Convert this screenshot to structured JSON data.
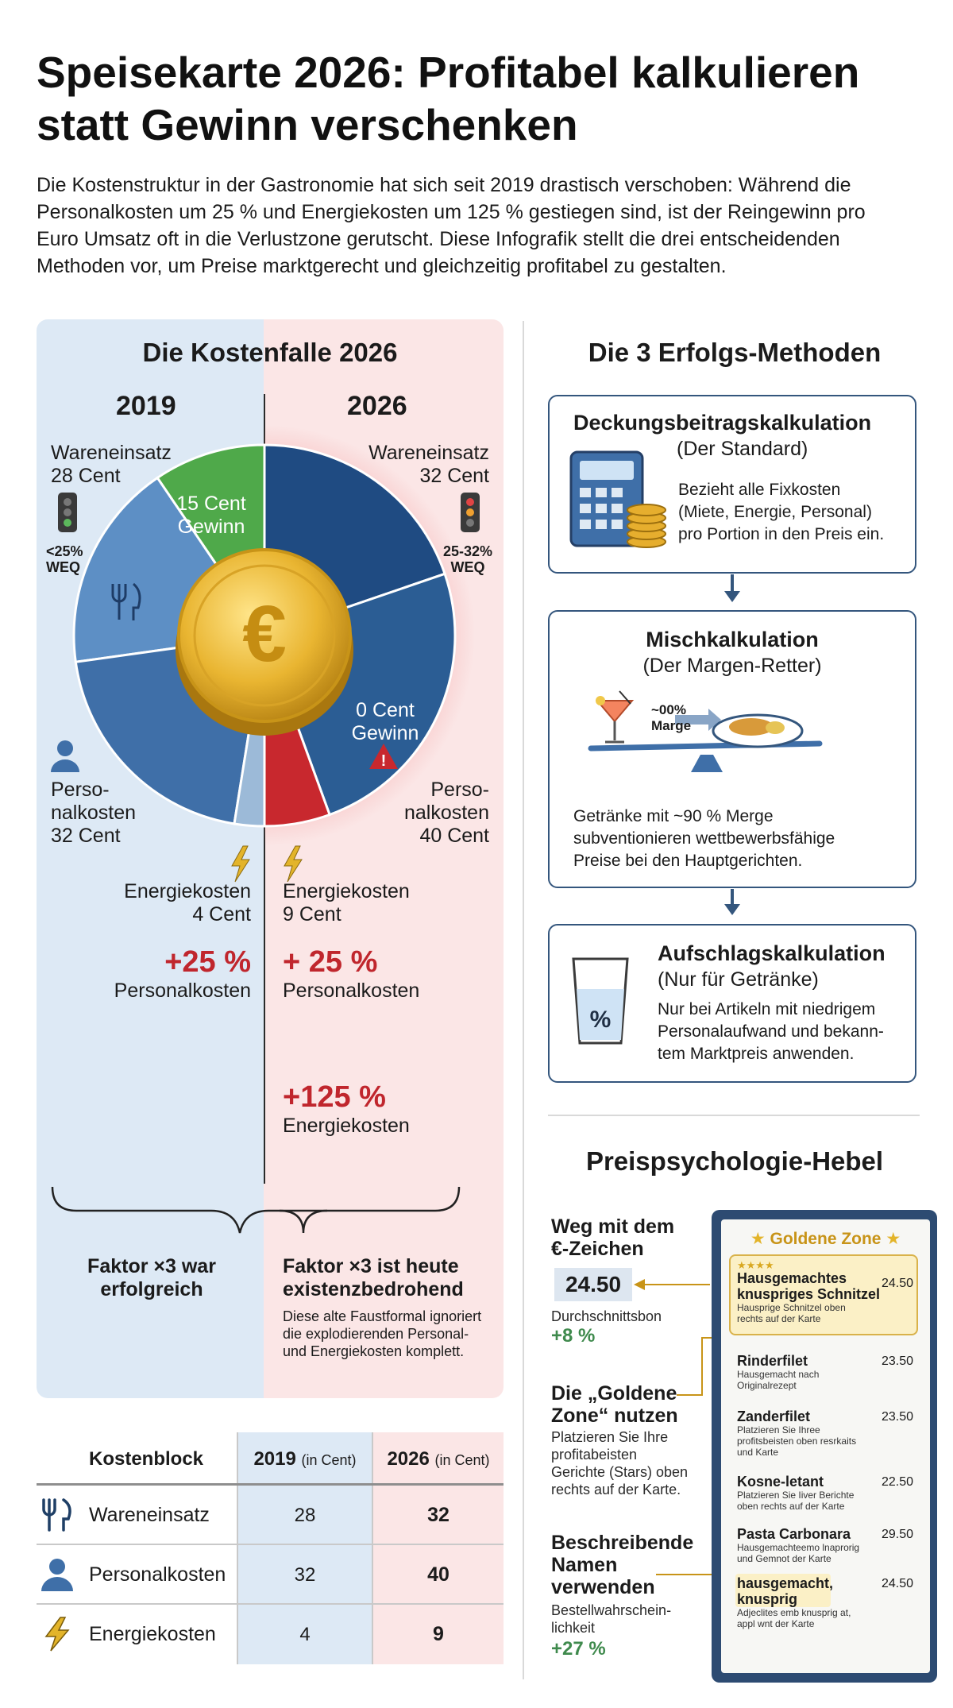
{
  "header": {
    "title_lines": [
      "Speisekarte 2026: Profitabel kalkulieren",
      "statt Gewinn verschenken"
    ],
    "intro_lines": [
      "Die Kostenstruktur in der Gastronomie hat sich seit 2019 drastisch verschoben: Während die",
      "Personalkosten um 25 % und Energiekosten um 125 % gestiegen sind, ist der Reingewinn pro",
      "Euro Umsatz oft in die Verlustzone gerutscht. Diese Infografik stellt die drei entscheidenden",
      "Methoden vor, um Preise marktgerecht und gleichzeitig profitabel zu gestalten."
    ]
  },
  "kostenfalle": {
    "title": "Die Kostenfalle 2026",
    "year_left": "2019",
    "year_right": "2026",
    "left": {
      "waren_label": "Wareneinsatz",
      "waren_value": "28 Cent",
      "weq_lines": [
        "<25%",
        "WEQ"
      ],
      "gewinn_lines": [
        "15 Cent",
        "Gewinn"
      ],
      "personal_lines": [
        "Perso-",
        "nalkosten",
        "32 Cent"
      ],
      "energie_lines": [
        "Energiekosten",
        "4 Cent"
      ],
      "increase_value": "+25 %",
      "increase_label": "Personalkosten",
      "faktor_lines": [
        "Faktor ×3 war",
        "erfolgreich"
      ]
    },
    "right": {
      "waren_label": "Wareneinsatz",
      "waren_value": "32 Cent",
      "weq_lines": [
        "25-32%",
        "WEQ"
      ],
      "gewinn_lines": [
        "0 Cent",
        "Gewinn"
      ],
      "personal_lines": [
        "Perso-",
        "nalkosten",
        "40 Cent"
      ],
      "energie_lines": [
        "Energiekosten",
        "9 Cent"
      ],
      "increase_value": "+ 25 %",
      "increase_label": "Personalkosten",
      "increase2_value": "+125 %",
      "increase2_label": "Energiekosten",
      "faktor_lines": [
        "Faktor ×3 ist heute",
        "existenzbedrohend"
      ],
      "faktor_note_lines": [
        "Diese alte Faustformal ignoriert",
        "die explodierenden Personal-",
        "und Energiekosten komplett."
      ]
    },
    "coin_symbol": "€",
    "warning_symbol": "!",
    "colors": {
      "gewinn_2019": "#4fa94a",
      "waren_2019": "#5d8fc5",
      "personal_2019": "#3f6fa8",
      "energie_2019": "#9cbad8",
      "waren_2026": "#1f4b82",
      "personal_2026": "#2b5d94",
      "energie_2026": "#c8282e"
    },
    "chart_data": {
      "type": "pie",
      "unit": "Cent",
      "series": [
        {
          "name": "2019",
          "labels": [
            "Gewinn",
            "Wareneinsatz",
            "Personalkosten",
            "Energiekosten"
          ],
          "values": [
            15,
            28,
            32,
            4
          ]
        },
        {
          "name": "2026",
          "labels": [
            "Wareneinsatz",
            "Gewinn",
            "Personalkosten",
            "Energiekosten"
          ],
          "values": [
            32,
            0,
            40,
            9
          ]
        }
      ]
    }
  },
  "table": {
    "headers": {
      "c1": "Kostenblock",
      "c2": "2019",
      "c2_unit": "(in Cent)",
      "c3": "2026",
      "c3_unit": "(in Cent)"
    },
    "rows": [
      {
        "icon": "fork-knife-icon",
        "label": "Wareneinsatz",
        "v2019": "28",
        "v2026": "32"
      },
      {
        "icon": "person-icon",
        "label": "Personalkosten",
        "v2019": "32",
        "v2026": "40"
      },
      {
        "icon": "lightning-icon",
        "label": "Energiekosten",
        "v2019": "4",
        "v2026": "9"
      }
    ]
  },
  "methods": {
    "title": "Die 3 Erfolgs-Methoden",
    "cards": [
      {
        "title": "Deckungsbeitragskalkulation",
        "subtitle": "(Der Standard)",
        "text_lines": [
          "Bezieht alle Fixkosten",
          "(Miete, Energie, Personal)",
          "pro Portion in den Preis ein."
        ]
      },
      {
        "title": "Mischkalkulation",
        "subtitle": "(Der Margen-Retter)",
        "scale_lines": [
          "~00%",
          "Marge"
        ],
        "text_lines": [
          "Getränke mit ~90 % Merge",
          "subventionieren wettbewerbsfähige",
          "Preise bei den Hauptgerichten."
        ]
      },
      {
        "title": "Aufschlagskalkulation",
        "subtitle": "(Nur für Getränke)",
        "glass_symbol": "%",
        "text_lines": [
          "Nur bei Artikeln mit niedrigem",
          "Personalaufwand und bekann-",
          "tem Marktpreis anwenden."
        ]
      }
    ]
  },
  "psychology": {
    "title": "Preispsychologie-Hebel",
    "lever1": {
      "title_lines": [
        "Weg mit dem",
        "€-Zeichen"
      ],
      "price": "24.50",
      "label": "Durchschnittsbon",
      "value": "+8 %"
    },
    "lever2": {
      "title_lines": [
        "Die „Goldene",
        "Zone“ nutzen"
      ],
      "text_lines": [
        "Platzieren Sie Ihre",
        "profitabeisten",
        "Gerichte (Stars) oben",
        "rechts auf der Karte."
      ]
    },
    "lever3": {
      "title_lines": [
        "Beschreibende",
        "Namen",
        "verwenden"
      ],
      "text_lines": [
        "Bestellwahrschein-",
        "lichkeit"
      ],
      "value": "+27 %"
    },
    "menu": {
      "zone_title": "Goldene Zone",
      "stars": "★★★★",
      "items": [
        {
          "name_lines": [
            "Hausgemachtes",
            "knuspriges Schnitzel"
          ],
          "desc_lines": [
            "Hausprige Schnitzel oben",
            "rechts auf der Karte"
          ],
          "price": "24.50"
        },
        {
          "name_lines": [
            "Rinderfilet"
          ],
          "desc_lines": [
            "Hausgemacht nach",
            "Originalrezept"
          ],
          "price": "23.50"
        },
        {
          "name_lines": [
            "Zanderfilet"
          ],
          "desc_lines": [
            "Platzieren Sie Ihree",
            "profitsbeisten oben resrkaits",
            "und Karte"
          ],
          "price": "23.50"
        },
        {
          "name_lines": [
            "Kosne-letant"
          ],
          "desc_lines": [
            "Platzieren Sie Iiver Berichte",
            "oben rechts auf der Karte"
          ],
          "price": "22.50"
        },
        {
          "name_lines": [
            "Pasta Carbonara"
          ],
          "desc_lines": [
            "Hausgemachteemo lnaprorig",
            "und Gemnot der Karte"
          ],
          "price": "29.50"
        },
        {
          "name_lines": [
            "hausgemacht,",
            "knusprig"
          ],
          "desc_lines": [
            "Adjeclites emb knusprig at,",
            "appl wnt der Karte"
          ],
          "price": "24.50"
        }
      ]
    }
  }
}
